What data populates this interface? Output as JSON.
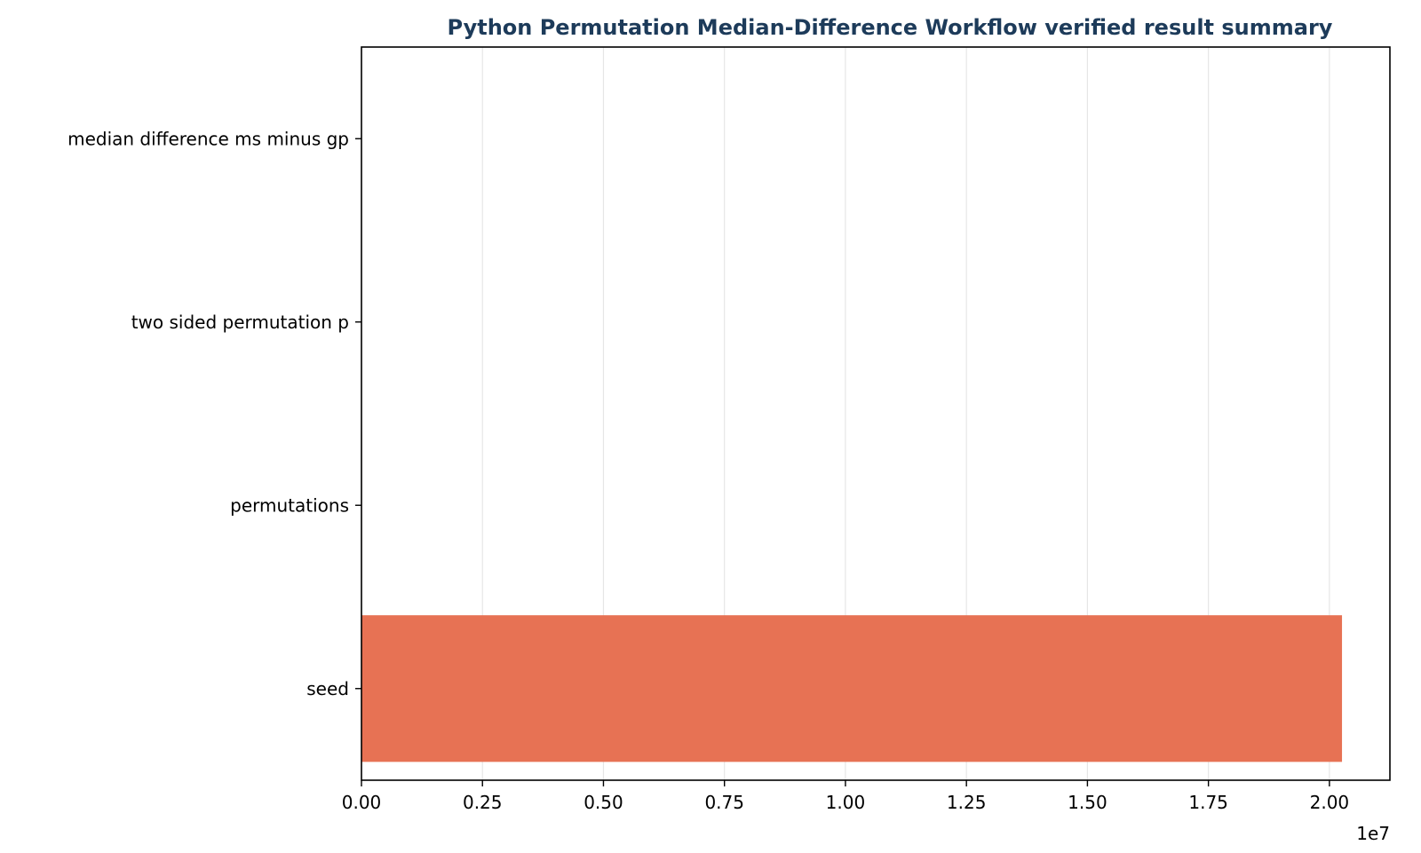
{
  "chart_data": {
    "type": "bar",
    "orientation": "horizontal",
    "title": "Python Permutation Median-Difference Workflow verified result summary",
    "xlabel": "",
    "ylabel": "",
    "x_offset_label": "1e7",
    "categories": [
      "seed",
      "permutations",
      "two sided permutation p",
      "median difference ms minus gp"
    ],
    "values": [
      20260000,
      10000,
      0.0002,
      35
    ],
    "xlim": [
      0,
      21250000
    ],
    "x_ticks": [
      0,
      2500000,
      5000000,
      7500000,
      10000000,
      12500000,
      15000000,
      17500000,
      20000000
    ],
    "x_tick_labels": [
      "0.00",
      "0.25",
      "0.50",
      "0.75",
      "1.00",
      "1.25",
      "1.50",
      "1.75",
      "2.00"
    ],
    "grid": "x",
    "legend": "none",
    "bar_color": "#e76f51",
    "title_color": "#1d3b5a"
  }
}
